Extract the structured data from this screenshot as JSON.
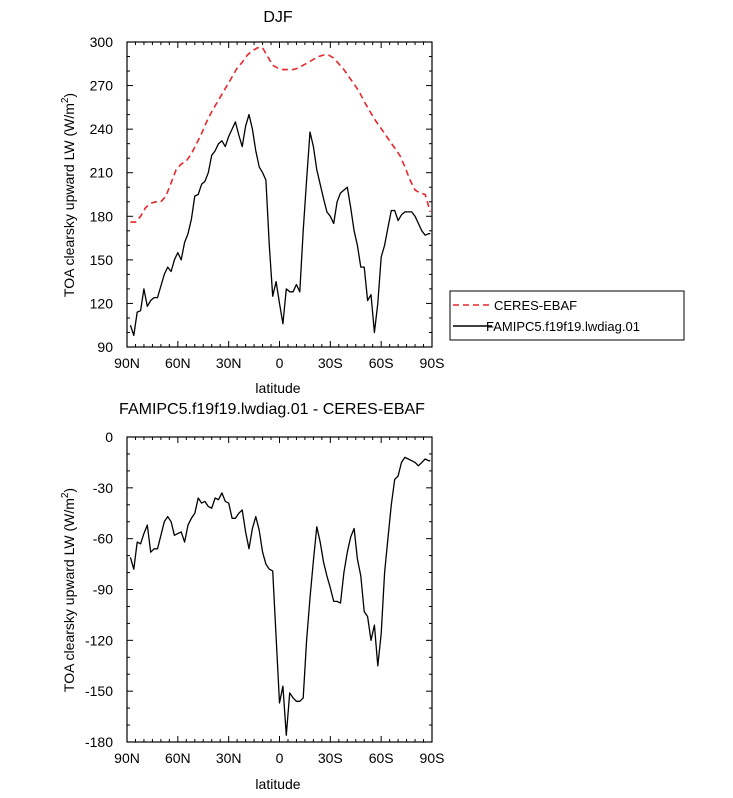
{
  "chart_data": [
    {
      "type": "line",
      "title": "DJF",
      "xlabel": "latitude",
      "ylabel": "TOA clearsky upward LW (W/m²)",
      "ylabel_main": "TOA clearsky upward LW (W/m",
      "ylabel_sup": "2",
      "ylabel_tail": ")",
      "xlim": [
        90,
        -90
      ],
      "ylim": [
        90,
        300
      ],
      "xticks": [
        90,
        60,
        30,
        0,
        -30,
        -60,
        -90
      ],
      "xtick_labels": [
        "90N",
        "60N",
        "30N",
        "0",
        "30S",
        "60S",
        "90S"
      ],
      "yticks": [
        90,
        120,
        150,
        180,
        210,
        240,
        270,
        300
      ],
      "ytick_labels": [
        "90",
        "120",
        "150",
        "180",
        "210",
        "240",
        "270",
        "300"
      ],
      "legend_position": "right",
      "series": [
        {
          "name": "CERES-EBAF",
          "color": "#e8262b",
          "dash": "dashed",
          "x": [
            88,
            85,
            82,
            79,
            76,
            73,
            70,
            67,
            64,
            61,
            58,
            55,
            52,
            49,
            46,
            43,
            40,
            37,
            34,
            31,
            28,
            25,
            22,
            19,
            16,
            13,
            10,
            7,
            4,
            1,
            -2,
            -5,
            -8,
            -11,
            -14,
            -17,
            -20,
            -23,
            -26,
            -29,
            -32,
            -35,
            -38,
            -41,
            -44,
            -47,
            -50,
            -53,
            -56,
            -59,
            -62,
            -65,
            -68,
            -71,
            -74,
            -77,
            -80,
            -83,
            -86,
            -89
          ],
          "y": [
            176,
            176,
            180,
            186,
            189,
            190,
            190,
            194,
            203,
            212,
            216,
            218,
            223,
            230,
            237,
            245,
            252,
            258,
            264,
            270,
            276,
            282,
            286,
            291,
            294,
            296,
            296,
            290,
            284,
            282,
            281,
            281,
            281,
            282,
            284,
            286,
            288,
            290,
            291,
            291,
            289,
            285,
            281,
            276,
            271,
            266,
            259,
            253,
            247,
            242,
            237,
            232,
            227,
            222,
            214,
            205,
            198,
            196,
            195,
            183
          ]
        },
        {
          "name": "FAMIPC5.f19f19.lwdiag.01",
          "color": "#000000",
          "dash": "solid",
          "x": [
            88,
            86,
            84,
            82,
            80,
            78,
            76,
            74,
            72,
            70,
            68,
            66,
            64,
            62,
            60,
            58,
            56,
            54,
            52,
            50,
            48,
            46,
            44,
            42,
            40,
            38,
            36,
            34,
            32,
            30,
            28,
            26,
            24,
            22,
            20,
            18,
            16,
            14,
            12,
            10,
            8,
            6,
            4,
            2,
            0,
            -2,
            -4,
            -6,
            -8,
            -10,
            -12,
            -14,
            -16,
            -18,
            -20,
            -22,
            -24,
            -26,
            -28,
            -30,
            -32,
            -34,
            -36,
            -38,
            -40,
            -42,
            -44,
            -46,
            -48,
            -50,
            -52,
            -54,
            -56,
            -58,
            -60,
            -62,
            -64,
            -66,
            -68,
            -70,
            -72,
            -74,
            -76,
            -78,
            -80,
            -82,
            -84,
            -86,
            -88,
            -89
          ],
          "y": [
            105,
            98,
            114,
            115,
            130,
            118,
            122,
            124,
            124,
            132,
            140,
            145,
            142,
            150,
            155,
            150,
            162,
            168,
            178,
            194,
            195,
            202,
            204,
            210,
            222,
            225,
            230,
            232,
            228,
            235,
            240,
            245,
            236,
            228,
            242,
            250,
            240,
            225,
            214,
            210,
            205,
            160,
            125,
            135,
            120,
            106,
            130,
            128,
            128,
            133,
            128,
            170,
            205,
            238,
            228,
            212,
            202,
            192,
            183,
            180,
            175,
            190,
            196,
            198,
            200,
            186,
            170,
            160,
            145,
            145,
            122,
            126,
            100,
            120,
            152,
            160,
            172,
            184,
            184,
            177,
            181,
            183,
            183,
            183,
            180,
            175,
            170,
            167,
            168,
            168
          ]
        }
      ]
    },
    {
      "type": "line",
      "title": "FAMIPC5.f19f19.lwdiag.01 - CERES-EBAF",
      "xlabel": "latitude",
      "ylabel": "TOA clearsky upward LW (W/m²)",
      "ylabel_main": "TOA clearsky upward LW (W/m",
      "ylabel_sup": "2",
      "ylabel_tail": ")",
      "xlim": [
        90,
        -90
      ],
      "ylim": [
        -180,
        0
      ],
      "xticks": [
        90,
        60,
        30,
        0,
        -30,
        -60,
        -90
      ],
      "xtick_labels": [
        "90N",
        "60N",
        "30N",
        "0",
        "30S",
        "60S",
        "90S"
      ],
      "yticks": [
        -180,
        -150,
        -120,
        -90,
        -60,
        -30,
        0
      ],
      "ytick_labels": [
        "-180",
        "-150",
        "-120",
        "-90",
        "-60",
        "-30",
        "0"
      ],
      "series": [
        {
          "name": "",
          "color": "#000000",
          "dash": "solid",
          "x": [
            88,
            86,
            84,
            82,
            80,
            78,
            76,
            74,
            72,
            70,
            68,
            66,
            64,
            62,
            60,
            58,
            56,
            54,
            52,
            50,
            48,
            46,
            44,
            42,
            40,
            38,
            36,
            34,
            32,
            30,
            28,
            26,
            24,
            22,
            20,
            18,
            16,
            14,
            12,
            10,
            8,
            6,
            4,
            2,
            0,
            -2,
            -4,
            -6,
            -8,
            -10,
            -12,
            -14,
            -16,
            -18,
            -20,
            -22,
            -24,
            -26,
            -28,
            -30,
            -32,
            -34,
            -36,
            -38,
            -40,
            -42,
            -44,
            -46,
            -48,
            -50,
            -52,
            -54,
            -56,
            -58,
            -60,
            -62,
            -64,
            -66,
            -68,
            -70,
            -72,
            -74,
            -76,
            -78,
            -80,
            -82,
            -84,
            -86,
            -88,
            -89
          ],
          "y": [
            -71,
            -78,
            -62,
            -63,
            -57,
            -52,
            -68,
            -66,
            -66,
            -58,
            -50,
            -47,
            -50,
            -58,
            -57,
            -56,
            -62,
            -52,
            -48,
            -45,
            -36,
            -39,
            -38,
            -41,
            -42,
            -36,
            -37,
            -33,
            -38,
            -39,
            -48,
            -48,
            -45,
            -43,
            -56,
            -66,
            -54,
            -47,
            -55,
            -68,
            -75,
            -78,
            -79,
            -118,
            -157,
            -147,
            -176,
            -151,
            -154,
            -156,
            -156,
            -154,
            -120,
            -95,
            -73,
            -53,
            -62,
            -74,
            -82,
            -89,
            -97,
            -97,
            -98,
            -80,
            -68,
            -59,
            -54,
            -72,
            -82,
            -103,
            -106,
            -120,
            -111,
            -135,
            -116,
            -80,
            -60,
            -40,
            -25,
            -23,
            -15,
            -12,
            -13,
            -14,
            -15,
            -17,
            -15,
            -13,
            -14,
            -14
          ]
        }
      ]
    }
  ]
}
